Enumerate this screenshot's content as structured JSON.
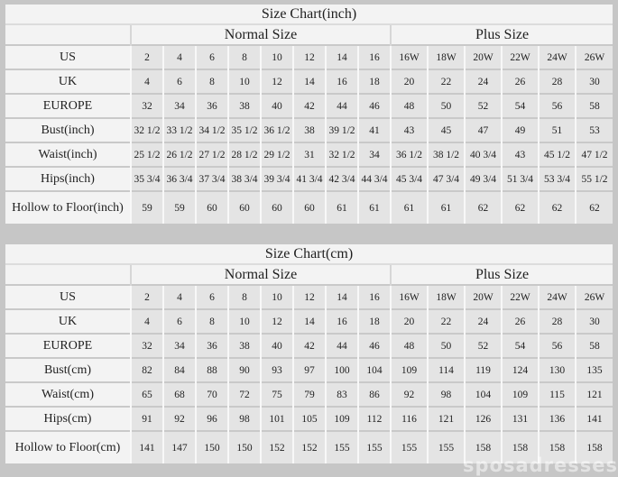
{
  "watermark": "sposadresses",
  "colors": {
    "page_background": "#c6c6c6",
    "table_background": "#f3f3f3",
    "data_cell_background": "#e4e4e4",
    "grid_dark": "#c9c9c9",
    "grid_light": "#f8f8f8",
    "text": "#1f1f1f"
  },
  "chart_data": [
    {
      "type": "table",
      "title": "Size Chart(inch)",
      "column_groups": [
        {
          "label": "Normal Size",
          "span": 8
        },
        {
          "label": "Plus Size",
          "span": 6
        }
      ],
      "rows": [
        {
          "label": "US",
          "normal": [
            "2",
            "4",
            "6",
            "8",
            "10",
            "12",
            "14",
            "16"
          ],
          "plus": [
            "16W",
            "18W",
            "20W",
            "22W",
            "24W",
            "26W"
          ]
        },
        {
          "label": "UK",
          "normal": [
            "4",
            "6",
            "8",
            "10",
            "12",
            "14",
            "16",
            "18"
          ],
          "plus": [
            "20",
            "22",
            "24",
            "26",
            "28",
            "30"
          ]
        },
        {
          "label": "EUROPE",
          "normal": [
            "32",
            "34",
            "36",
            "38",
            "40",
            "42",
            "44",
            "46"
          ],
          "plus": [
            "48",
            "50",
            "52",
            "54",
            "56",
            "58"
          ]
        },
        {
          "label": "Bust(inch)",
          "normal": [
            "32 1/2",
            "33 1/2",
            "34 1/2",
            "35 1/2",
            "36 1/2",
            "38",
            "39 1/2",
            "41"
          ],
          "plus": [
            "43",
            "45",
            "47",
            "49",
            "51",
            "53"
          ]
        },
        {
          "label": "Waist(inch)",
          "normal": [
            "25 1/2",
            "26 1/2",
            "27 1/2",
            "28 1/2",
            "29 1/2",
            "31",
            "32 1/2",
            "34"
          ],
          "plus": [
            "36 1/2",
            "38 1/2",
            "40 3/4",
            "43",
            "45 1/2",
            "47 1/2"
          ]
        },
        {
          "label": "Hips(inch)",
          "normal": [
            "35 3/4",
            "36 3/4",
            "37 3/4",
            "38 3/4",
            "39 3/4",
            "41 3/4",
            "42 3/4",
            "44 3/4"
          ],
          "plus": [
            "45 3/4",
            "47 3/4",
            "49 3/4",
            "51 3/4",
            "53 3/4",
            "55 1/2"
          ]
        },
        {
          "label": "Hollow to Floor(inch)",
          "normal": [
            "59",
            "59",
            "60",
            "60",
            "60",
            "60",
            "61",
            "61"
          ],
          "plus": [
            "61",
            "61",
            "62",
            "62",
            "62",
            "62"
          ]
        }
      ]
    },
    {
      "type": "table",
      "title": "Size Chart(cm)",
      "column_groups": [
        {
          "label": "Normal Size",
          "span": 8
        },
        {
          "label": "Plus Size",
          "span": 6
        }
      ],
      "rows": [
        {
          "label": "US",
          "normal": [
            "2",
            "4",
            "6",
            "8",
            "10",
            "12",
            "14",
            "16"
          ],
          "plus": [
            "16W",
            "18W",
            "20W",
            "22W",
            "24W",
            "26W"
          ]
        },
        {
          "label": "UK",
          "normal": [
            "4",
            "6",
            "8",
            "10",
            "12",
            "14",
            "16",
            "18"
          ],
          "plus": [
            "20",
            "22",
            "24",
            "26",
            "28",
            "30"
          ]
        },
        {
          "label": "EUROPE",
          "normal": [
            "32",
            "34",
            "36",
            "38",
            "40",
            "42",
            "44",
            "46"
          ],
          "plus": [
            "48",
            "50",
            "52",
            "54",
            "56",
            "58"
          ]
        },
        {
          "label": "Bust(cm)",
          "normal": [
            "82",
            "84",
            "88",
            "90",
            "93",
            "97",
            "100",
            "104"
          ],
          "plus": [
            "109",
            "114",
            "119",
            "124",
            "130",
            "135"
          ]
        },
        {
          "label": "Waist(cm)",
          "normal": [
            "65",
            "68",
            "70",
            "72",
            "75",
            "79",
            "83",
            "86"
          ],
          "plus": [
            "92",
            "98",
            "104",
            "109",
            "115",
            "121"
          ]
        },
        {
          "label": "Hips(cm)",
          "normal": [
            "91",
            "92",
            "96",
            "98",
            "101",
            "105",
            "109",
            "112"
          ],
          "plus": [
            "116",
            "121",
            "126",
            "131",
            "136",
            "141"
          ]
        },
        {
          "label": "Hollow to Floor(cm)",
          "normal": [
            "141",
            "147",
            "150",
            "150",
            "152",
            "152",
            "155",
            "155"
          ],
          "plus": [
            "155",
            "155",
            "158",
            "158",
            "158",
            "158"
          ]
        }
      ]
    }
  ]
}
